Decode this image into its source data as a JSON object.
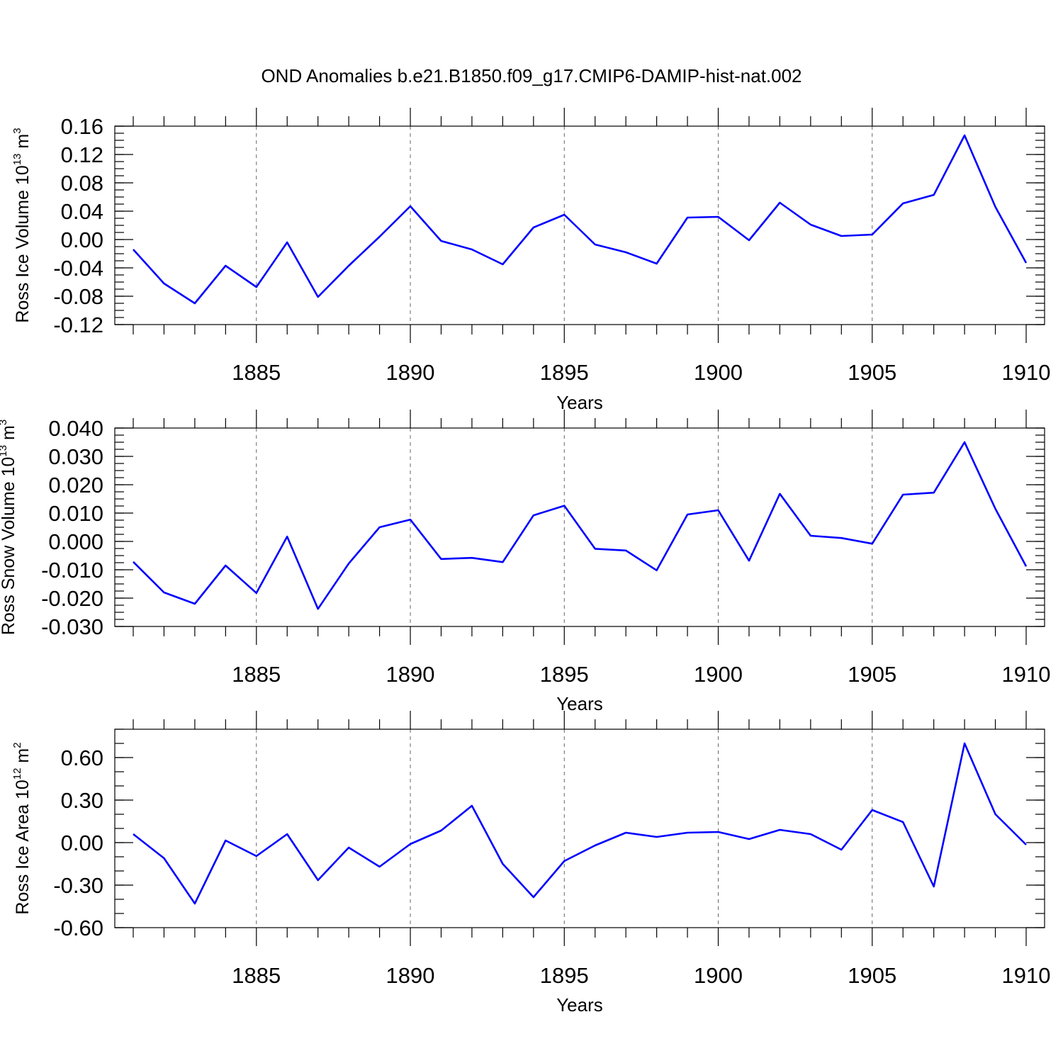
{
  "chart_data": {
    "title": "OND Anomalies b.e21.B1850.f09_g17.CMIP6-DAMIP-hist-nat.002",
    "panels": [
      {
        "type": "line",
        "ylabel": "Ross Ice Volume 10",
        "ylabel_exp": "13",
        "ylabel_unit": " m",
        "ylabel_unit_exp": "3",
        "xlabel": "Years",
        "xlim": [
          1881,
          1910
        ],
        "ylim": [
          -0.12,
          0.16
        ],
        "yticks": [
          -0.12,
          -0.08,
          -0.04,
          0.0,
          0.04,
          0.08,
          0.12,
          0.16
        ],
        "ytick_labels": [
          "-0.12",
          "-0.08",
          "-0.04",
          "0.00",
          "0.04",
          "0.08",
          "0.12",
          "0.16"
        ],
        "yminor": 0.01,
        "xticks": [
          1885,
          1890,
          1895,
          1900,
          1905,
          1910
        ],
        "xtick_labels": [
          "1885",
          "1890",
          "1895",
          "1900",
          "1905",
          "1910"
        ],
        "series": [
          {
            "name": "Ross Ice Volume",
            "color": "#0000ff",
            "x": [
              1881,
              1882,
              1883,
              1884,
              1885,
              1886,
              1887,
              1888,
              1889,
              1890,
              1891,
              1892,
              1893,
              1894,
              1895,
              1896,
              1897,
              1898,
              1899,
              1900,
              1901,
              1902,
              1903,
              1904,
              1905,
              1906,
              1907,
              1908,
              1909,
              1910
            ],
            "values": [
              -0.014,
              -0.062,
              -0.09,
              -0.037,
              -0.067,
              -0.004,
              -0.081,
              -0.037,
              0.004,
              0.047,
              -0.002,
              -0.014,
              -0.035,
              0.017,
              0.035,
              -0.007,
              -0.018,
              -0.034,
              0.031,
              0.032,
              -0.001,
              0.052,
              0.021,
              0.005,
              0.007,
              0.051,
              0.063,
              0.147,
              0.046,
              -0.033
            ]
          }
        ]
      },
      {
        "type": "line",
        "ylabel": "Ross Snow Volume 10",
        "ylabel_exp": "13",
        "ylabel_unit": " m",
        "ylabel_unit_exp": "3",
        "xlabel": "Years",
        "xlim": [
          1881,
          1910
        ],
        "ylim": [
          -0.03,
          0.04
        ],
        "yticks": [
          -0.03,
          -0.02,
          -0.01,
          0.0,
          0.01,
          0.02,
          0.03,
          0.04
        ],
        "ytick_labels": [
          "-0.030",
          "-0.020",
          "-0.010",
          "0.000",
          "0.010",
          "0.020",
          "0.030",
          "0.040"
        ],
        "yminor": 0.0025,
        "xticks": [
          1885,
          1890,
          1895,
          1900,
          1905,
          1910
        ],
        "xtick_labels": [
          "1885",
          "1890",
          "1895",
          "1900",
          "1905",
          "1910"
        ],
        "series": [
          {
            "name": "Ross Snow Volume",
            "color": "#0000ff",
            "x": [
              1881,
              1882,
              1883,
              1884,
              1885,
              1886,
              1887,
              1888,
              1889,
              1890,
              1891,
              1892,
              1893,
              1894,
              1895,
              1896,
              1897,
              1898,
              1899,
              1900,
              1901,
              1902,
              1903,
              1904,
              1905,
              1906,
              1907,
              1908,
              1909,
              1910
            ],
            "values": [
              -0.0072,
              -0.018,
              -0.022,
              -0.0085,
              -0.0182,
              0.0017,
              -0.0238,
              -0.0078,
              0.005,
              0.0077,
              -0.0062,
              -0.0058,
              -0.0073,
              0.0092,
              0.0126,
              -0.0026,
              -0.0032,
              -0.0102,
              0.0095,
              0.011,
              -0.0068,
              0.0168,
              0.002,
              0.0012,
              -0.0008,
              0.0165,
              0.0172,
              0.035,
              0.0115,
              -0.0088
            ]
          }
        ]
      },
      {
        "type": "line",
        "ylabel": "Ross Ice Area 10",
        "ylabel_exp": "12",
        "ylabel_unit": " m",
        "ylabel_unit_exp": "2",
        "xlabel": "Years",
        "xlim": [
          1881,
          1910
        ],
        "ylim": [
          -0.6,
          0.8
        ],
        "yticks": [
          -0.6,
          -0.3,
          0.0,
          0.3,
          0.6
        ],
        "ytick_labels": [
          "-0.60",
          "-0.30",
          "0.00",
          "0.30",
          "0.60"
        ],
        "yminor": 0.1,
        "xticks": [
          1885,
          1890,
          1895,
          1900,
          1905,
          1910
        ],
        "xtick_labels": [
          "1885",
          "1890",
          "1895",
          "1900",
          "1905",
          "1910"
        ],
        "series": [
          {
            "name": "Ross Ice Area",
            "color": "#0000ff",
            "x": [
              1881,
              1882,
              1883,
              1884,
              1885,
              1886,
              1887,
              1888,
              1889,
              1890,
              1891,
              1892,
              1893,
              1894,
              1895,
              1896,
              1897,
              1898,
              1899,
              1900,
              1901,
              1902,
              1903,
              1904,
              1905,
              1906,
              1907,
              1908,
              1909,
              1910
            ],
            "values": [
              0.06,
              -0.11,
              -0.43,
              0.015,
              -0.095,
              0.06,
              -0.265,
              -0.035,
              -0.17,
              -0.01,
              0.085,
              0.26,
              -0.15,
              -0.385,
              -0.13,
              -0.02,
              0.07,
              0.04,
              0.07,
              0.075,
              0.025,
              0.09,
              0.06,
              -0.05,
              0.23,
              0.145,
              -0.31,
              0.7,
              0.2,
              -0.015
            ]
          }
        ]
      }
    ]
  }
}
